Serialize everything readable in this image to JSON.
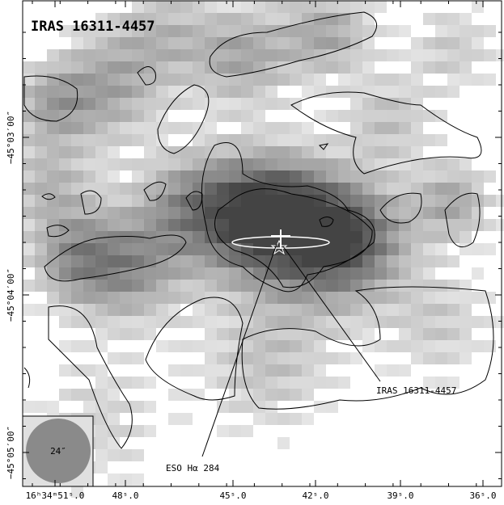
{
  "figure": {
    "title": "IRAS 16311-4457",
    "annotations": [
      "IRAS 16311-4457",
      "ESO Hα 284"
    ],
    "beam_label": "24″",
    "x_tick_labels": [
      "16ʰ34ᵐ51ˢ.0",
      "48ˢ.0",
      "45ˢ.0",
      "42ˢ.0",
      "39ˢ.0",
      "36ˢ.0"
    ],
    "y_tick_labels": [
      "−45°03′00″",
      "−45°04′00″",
      "−45°05′00″"
    ]
  }
}
